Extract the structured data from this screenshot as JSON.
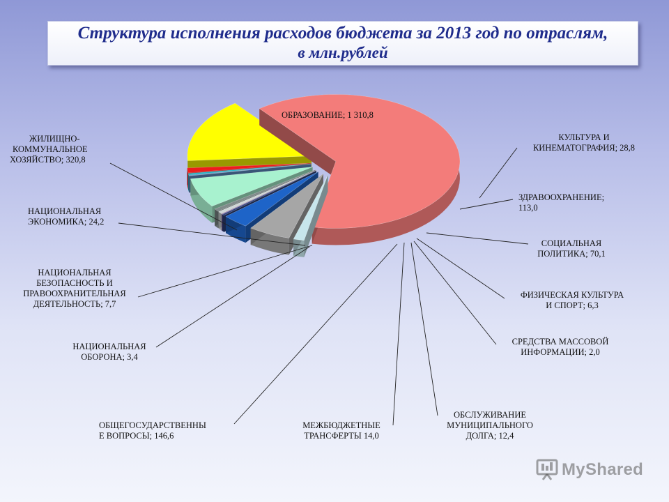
{
  "chart_data": {
    "type": "pie",
    "title": "Структура исполнения расходов бюджета за 2013 год  по отраслям,",
    "subtitle": "в млн.рублей",
    "exploded": true,
    "three_d": true,
    "slices": [
      {
        "name": "ОБРАЗОВАНИЕ",
        "value_text": "1 310,8",
        "value": 1310.8,
        "color": "#f37c7a"
      },
      {
        "name": "КУЛЬТУРА И КИНЕМАТОГРАФИЯ",
        "value_text": "28,8",
        "value": 28.8,
        "color": "#c7e6ec"
      },
      {
        "name": "ЗДРАВООХРАНЕНИЕ",
        "value_text": "113,0",
        "value": 113.0,
        "color": "#a6a6a6"
      },
      {
        "name": "СОЦИАЛЬНАЯ ПОЛИТИКА",
        "value_text": "70,1",
        "value": 70.1,
        "color": "#1e64c8"
      },
      {
        "name": "ФИЗИЧЕСКАЯ КУЛЬТУРА И СПОРТ",
        "value_text": "6,3",
        "value": 6.3,
        "color": "#2d3f7a"
      },
      {
        "name": "СРЕДСТВА МАССОВОЙ ИНФОРМАЦИИ",
        "value_text": "2,0",
        "value": 2.0,
        "color": "#7a4aa0"
      },
      {
        "name": "ОБСЛУЖИВАНИЕ МУНИЦИПАЛЬНОГО ДОЛГА",
        "value_text": "12,4",
        "value": 12.4,
        "color": "#cfd6d6"
      },
      {
        "name": "МЕЖБЮДЖЕТНЫЕ ТРАНСФЕРТЫ",
        "value_text": "14,0",
        "value": 14.0,
        "color": "#7f8a8a"
      },
      {
        "name": "ОБЩЕГОСУДАРСТВЕННЫЕ ВОПРОСЫ",
        "value_text": "146,6",
        "value": 146.6,
        "color": "#a8f2cf"
      },
      {
        "name": "НАЦИОНАЛЬНАЯ ОБОРОНА",
        "value_text": "3,4",
        "value": 3.4,
        "color": "#5f8fc6"
      },
      {
        "name": "НАЦИОНАЛЬНАЯ БЕЗОПАСНОСТЬ И ПРАВООХРАНИТЕЛЬНАЯ ДЕЯТЕЛЬНОСТЬ",
        "value_text": "7,7",
        "value": 7.7,
        "color": "#1fb4c8"
      },
      {
        "name": "НАЦИОНАЛЬНАЯ ЭКОНОМИКА",
        "value_text": "24,2",
        "value": 24.2,
        "color": "#ee1c1c"
      },
      {
        "name": "ЖИЛИЩНО-КОММУНАЛЬНОЕ ХОЗЯЙСТВО",
        "value_text": "320,8",
        "value": 320.8,
        "color": "#ffff00"
      }
    ],
    "labels": {
      "obraz": "ОБРАЗОВАНИЕ; 1 310,8",
      "zhkh": [
        "ЖИЛИЩНО-",
        "КОММУНАЛЬНОЕ",
        "ХОЗЯЙСТВО; 320,8"
      ],
      "ekon": [
        "НАЦИОНАЛЬНАЯ",
        "ЭКОНОМИКА; 24,2"
      ],
      "bezop": [
        "НАЦИОНАЛЬНАЯ",
        "БЕЗОПАСНОСТЬ И",
        "ПРАВООХРАНИТЕЛЬНАЯ",
        "ДЕЯТЕЛЬНОСТЬ; 7,7"
      ],
      "oborona": [
        "НАЦИОНАЛЬНАЯ",
        "ОБОРОНА; 3,4"
      ],
      "obshch": [
        "ОБЩЕГОСУДАРСТВЕННЫ",
        "Е ВОПРОСЫ; 146,6"
      ],
      "mezhb": [
        "МЕЖБЮДЖЕТНЫЕ",
        "ТРАНСФЕРТЫ  14,0"
      ],
      "dolg": [
        "ОБСЛУЖИВАНИЕ",
        "МУНИЦИПАЛЬНОГО",
        "ДОЛГА; 12,4"
      ],
      "smi": [
        "СРЕДСТВА МАССОВОЙ",
        "ИНФОРМАЦИИ; 2,0"
      ],
      "sport": [
        "ФИЗИЧЕСКАЯ КУЛЬТУРА",
        "И СПОРТ; 6,3"
      ],
      "soc": [
        "СОЦИАЛЬНАЯ",
        "ПОЛИТИКА; 70,1"
      ],
      "zdrav": [
        "ЗДРАВООХРАНЕНИЕ;",
        "113,0"
      ],
      "kult": [
        "КУЛЬТУРА И",
        "КИНЕМАТОГРАФИЯ; 28,8"
      ]
    }
  },
  "watermark": {
    "text": "MyShared",
    "icon": "presentation-board-icon"
  }
}
